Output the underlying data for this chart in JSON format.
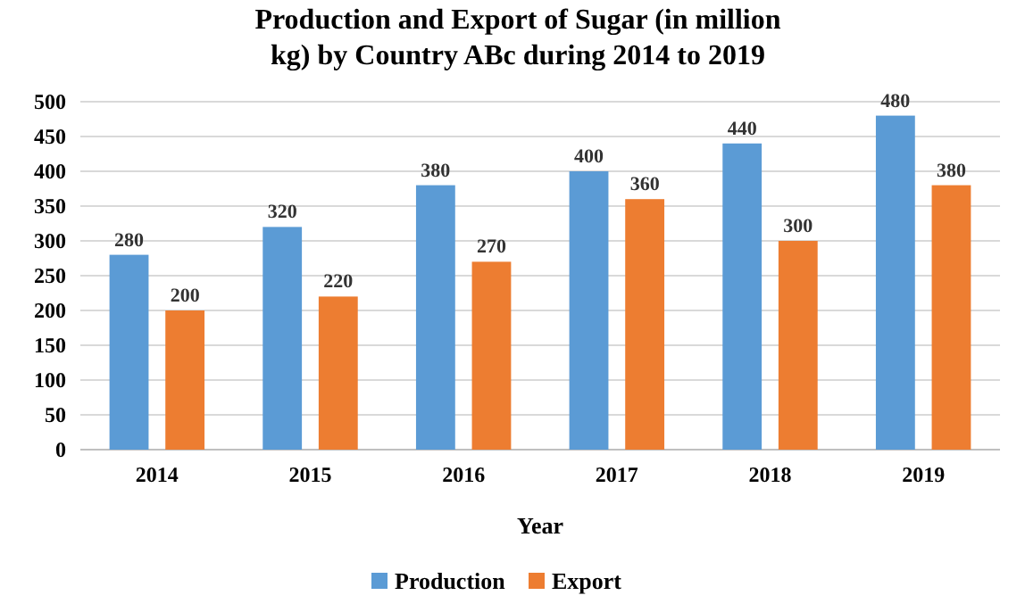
{
  "chart_data": {
    "type": "bar",
    "title": "Production and Export of Sugar (in million kg) by Country ABc during 2014 to 2019",
    "xlabel": "Year",
    "categories": [
      "2014",
      "2015",
      "2016",
      "2017",
      "2018",
      "2019"
    ],
    "series": [
      {
        "name": "Production",
        "color": "#5b9bd5",
        "values": [
          280,
          320,
          380,
          400,
          440,
          480
        ]
      },
      {
        "name": "Export",
        "color": "#ed7d31",
        "values": [
          200,
          220,
          270,
          360,
          300,
          380
        ]
      }
    ],
    "ylim": [
      0,
      500
    ],
    "yticks": [
      0,
      50,
      100,
      150,
      200,
      250,
      300,
      350,
      400,
      450,
      500
    ],
    "grid": "y",
    "legend": "bottom",
    "data_labels": true
  }
}
